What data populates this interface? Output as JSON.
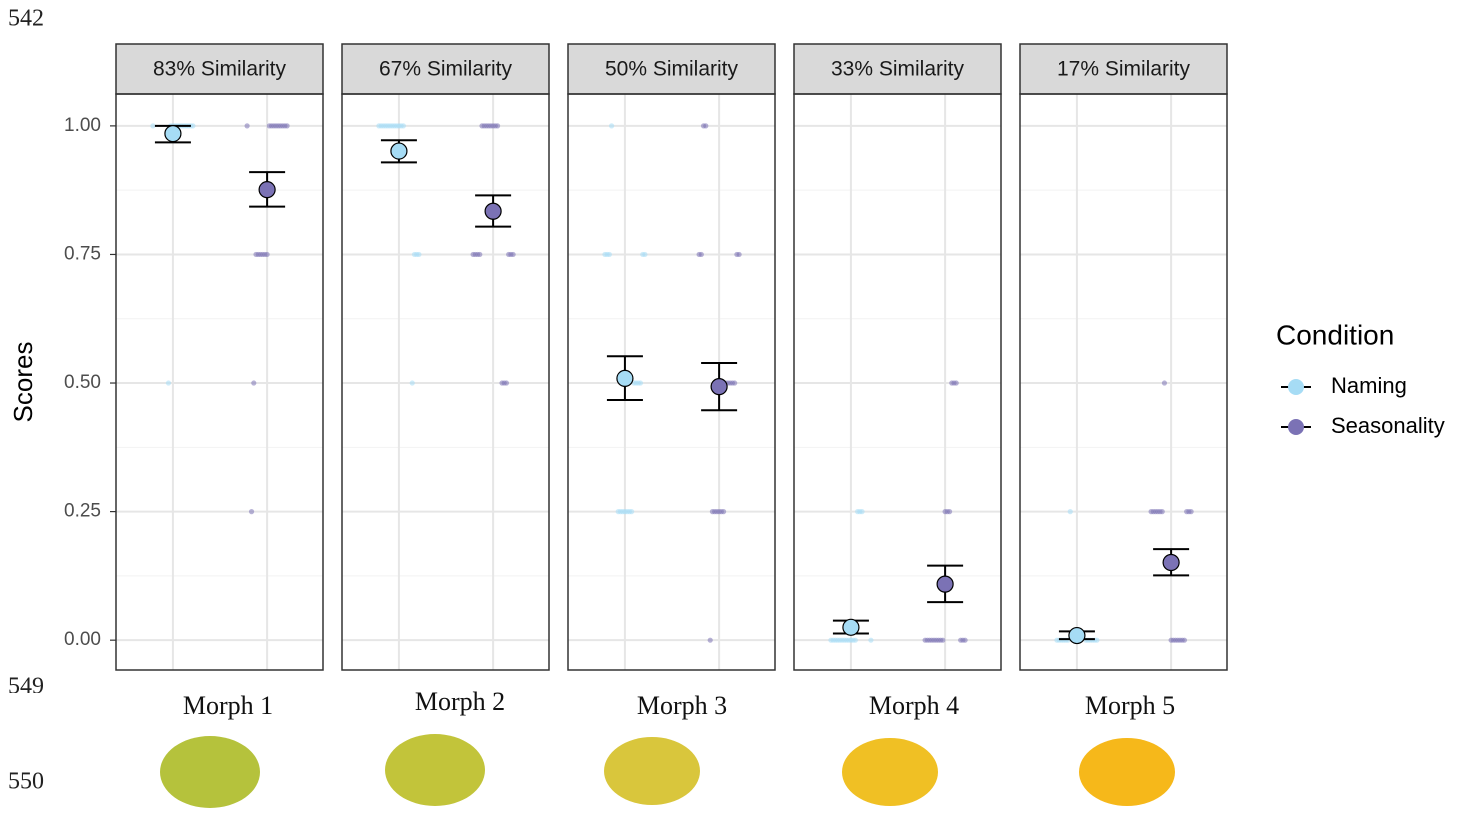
{
  "document": {
    "line_numbers": [
      "542",
      "549",
      "550"
    ],
    "morph_labels": [
      "Morph 1",
      "Morph 2",
      "Morph 3",
      "Morph 4",
      "Morph 5"
    ]
  },
  "chart_data": {
    "type": "point-range",
    "ylabel": "Scores",
    "legend_title": "Condition",
    "ylim": [
      -0.058,
      1.062
    ],
    "yticks": [
      {
        "value": 0,
        "label": "0.00"
      },
      {
        "value": 0.25,
        "label": "0.25"
      },
      {
        "value": 0.5,
        "label": "0.50"
      },
      {
        "value": 0.75,
        "label": "0.75"
      },
      {
        "value": 1,
        "label": "1.00"
      }
    ],
    "grid": true,
    "series": [
      {
        "name": "Naming",
        "color": "#a6dcf5"
      },
      {
        "name": "Seasonality",
        "color": "#7b72b5"
      }
    ],
    "facets": [
      {
        "title": "83% Similarity",
        "means": [
          0.985,
          0.876
        ],
        "lower": [
          0.968,
          0.843
        ],
        "upper": [
          1.0,
          0.91
        ],
        "points": [
          [
            1,
            1,
            1,
            1,
            1,
            1,
            1,
            1,
            1,
            1,
            1,
            1,
            0.5
          ],
          [
            1,
            1,
            1,
            1,
            1,
            1,
            1,
            1,
            1,
            1,
            0.75,
            0.75,
            0.75,
            0.75,
            0.75,
            0.75,
            0.5,
            0.25
          ]
        ]
      },
      {
        "title": "67% Similarity",
        "means": [
          0.951,
          0.834
        ],
        "lower": [
          0.929,
          0.804
        ],
        "upper": [
          0.972,
          0.865
        ],
        "points": [
          [
            1,
            1,
            1,
            1,
            1,
            1,
            1,
            1,
            1,
            1,
            1,
            1,
            0.75,
            0.75,
            0.75,
            0.5
          ],
          [
            1,
            1,
            1,
            1,
            1,
            1,
            1,
            1,
            0.75,
            0.75,
            0.75,
            0.75,
            0.75,
            0.75,
            0.75,
            0.5,
            0.5,
            0.5
          ]
        ]
      },
      {
        "title": "50% Similarity",
        "means": [
          0.509,
          0.493
        ],
        "lower": [
          0.467,
          0.447
        ],
        "upper": [
          0.552,
          0.539
        ],
        "points": [
          [
            1,
            0.75,
            0.75,
            0.75,
            0.75,
            0.75,
            0.5,
            0.5,
            0.5,
            0.5,
            0.25,
            0.25,
            0.25,
            0.25,
            0.25,
            0.25,
            0.25
          ],
          [
            1,
            1,
            0.75,
            0.75,
            0.75,
            0.75,
            0.5,
            0.5,
            0.5,
            0.5,
            0.5,
            0.25,
            0.25,
            0.25,
            0.25,
            0.25,
            0.25,
            0
          ]
        ]
      },
      {
        "title": "33% Similarity",
        "means": [
          0.025,
          0.109
        ],
        "lower": [
          0.013,
          0.074
        ],
        "upper": [
          0.038,
          0.145
        ],
        "points": [
          [
            0.25,
            0.25,
            0.25,
            0,
            0,
            0,
            0,
            0,
            0,
            0,
            0,
            0,
            0,
            0,
            0,
            0
          ],
          [
            0.5,
            0.5,
            0.5,
            0.25,
            0.25,
            0.25,
            0,
            0,
            0,
            0,
            0,
            0,
            0,
            0,
            0,
            0,
            0,
            0
          ]
        ]
      },
      {
        "title": "17% Similarity",
        "means": [
          0.009,
          0.151
        ],
        "lower": [
          0.002,
          0.126
        ],
        "upper": [
          0.017,
          0.177
        ],
        "points": [
          [
            0.25,
            0,
            0,
            0,
            0,
            0,
            0,
            0,
            0,
            0,
            0,
            0,
            0
          ],
          [
            0.5,
            0.25,
            0.25,
            0.25,
            0.25,
            0.25,
            0.25,
            0.25,
            0.25,
            0.25,
            0,
            0,
            0,
            0,
            0,
            0,
            0
          ]
        ]
      }
    ]
  }
}
